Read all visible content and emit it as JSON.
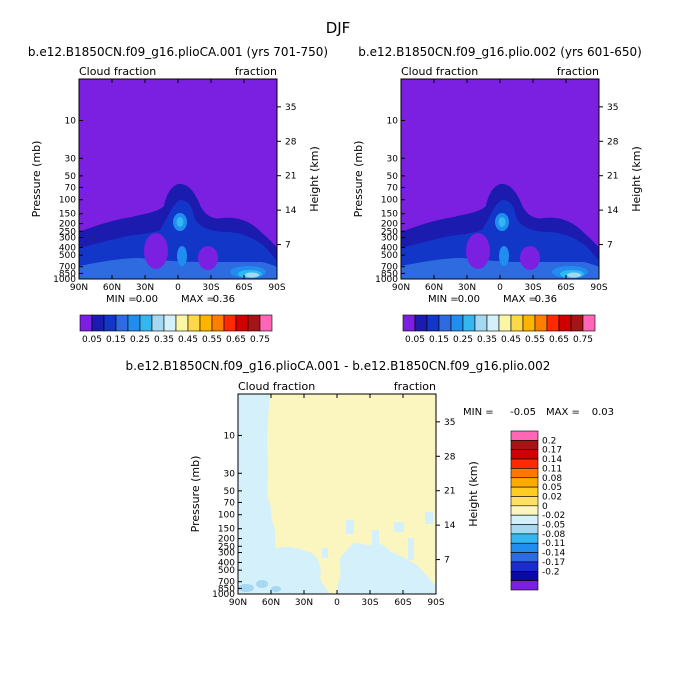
{
  "figure_title": "DJF",
  "colors": {
    "panel_scale": [
      "#7b1fe0",
      "#1c1bb0",
      "#1236c8",
      "#2f6be0",
      "#1f8ef0",
      "#34b6f0",
      "#a6d8f2",
      "#d4f0fa",
      "#fbf6a6",
      "#ffd84a",
      "#ffb400",
      "#ff7d00",
      "#ff2a00",
      "#d10000",
      "#a51515",
      "#ff66b8"
    ],
    "diff_scale": [
      "#7b1fe0",
      "#0b0aa8",
      "#1a2bd0",
      "#2f6be0",
      "#1f8ef0",
      "#34b6f0",
      "#a6d8f2",
      "#d4f0fa",
      "#fbf6c0",
      "#ffe066",
      "#ffcc22",
      "#ffaa00",
      "#ff7700",
      "#ff2a00",
      "#d10000",
      "#a51515",
      "#ff66b8"
    ]
  },
  "chart_data": [
    {
      "type": "contour",
      "title": "b.e12.B1850CN.f09_g16.plioCA.001 (yrs 701-750)",
      "variable": "Cloud fraction",
      "units": "fraction",
      "ylabel": "Pressure (mb)",
      "ylabel_right": "Height (km)",
      "x_ticks": [
        "90N",
        "60N",
        "30N",
        "0",
        "30S",
        "60S",
        "90S"
      ],
      "y_ticks": [
        "10",
        "30",
        "50",
        "70",
        "100",
        "150",
        "200",
        "250",
        "300",
        "400",
        "500",
        "700",
        "850",
        "1000"
      ],
      "height_ticks": [
        "35",
        "28",
        "21",
        "14",
        "7"
      ],
      "stats": {
        "min_label": "MIN =",
        "min": "0.00",
        "max_label": "MAX =",
        "max": "0.36"
      },
      "colorbar_labels": [
        "0.05",
        "0.15",
        "0.25",
        "0.35",
        "0.45",
        "0.55",
        "0.65",
        "0.75"
      ]
    },
    {
      "type": "contour",
      "title": "b.e12.B1850CN.f09_g16.plio.002 (yrs 601-650)",
      "variable": "Cloud fraction",
      "units": "fraction",
      "ylabel": "Pressure (mb)",
      "ylabel_right": "Height (km)",
      "x_ticks": [
        "90N",
        "60N",
        "30N",
        "0",
        "30S",
        "60S",
        "90S"
      ],
      "y_ticks": [
        "10",
        "30",
        "50",
        "70",
        "100",
        "150",
        "200",
        "250",
        "300",
        "400",
        "500",
        "700",
        "850",
        "1000"
      ],
      "height_ticks": [
        "35",
        "28",
        "21",
        "14",
        "7"
      ],
      "stats": {
        "min_label": "MIN =",
        "min": "0.00",
        "max_label": "MAX =",
        "max": "0.36"
      },
      "colorbar_labels": [
        "0.05",
        "0.15",
        "0.25",
        "0.35",
        "0.45",
        "0.55",
        "0.65",
        "0.75"
      ]
    },
    {
      "type": "contour",
      "title": "b.e12.B1850CN.f09_g16.plioCA.001 - b.e12.B1850CN.f09_g16.plio.002",
      "variable": "Cloud fraction",
      "units": "fraction",
      "ylabel": "Pressure (mb)",
      "ylabel_right": "Height (km)",
      "x_ticks": [
        "90N",
        "60N",
        "30N",
        "0",
        "30S",
        "60S",
        "90S"
      ],
      "y_ticks": [
        "10",
        "30",
        "50",
        "70",
        "100",
        "150",
        "200",
        "250",
        "300",
        "400",
        "500",
        "700",
        "850",
        "1000"
      ],
      "height_ticks": [
        "35",
        "28",
        "21",
        "14",
        "7"
      ],
      "stats": {
        "min_label": "MIN =",
        "min": "-0.05",
        "max_label": "MAX =",
        "max": "0.03"
      },
      "colorbar_labels": [
        "0.2",
        "0.17",
        "0.14",
        "0.11",
        "0.08",
        "0.05",
        "0.02",
        "0",
        "-0.02",
        "-0.05",
        "-0.08",
        "-0.11",
        "-0.14",
        "-0.17",
        "-0.2"
      ]
    }
  ]
}
